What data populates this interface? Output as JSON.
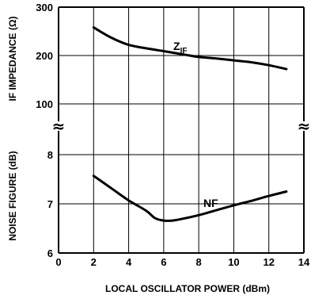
{
  "chart_data": {
    "type": "line",
    "xlabel": "LOCAL OSCILLATOR POWER (dBm)",
    "x_ticks": [
      "0",
      "2",
      "4",
      "6",
      "8",
      "10",
      "12",
      "14"
    ],
    "xlim": [
      0,
      14
    ],
    "grid": true,
    "panels": [
      {
        "ylabel": "IF IMPEDANCE (Ω)",
        "ylim": [
          100,
          300
        ],
        "y_ticks": [
          "100",
          "200",
          "300"
        ],
        "series": [
          {
            "name": "Z",
            "name_subscript": "IF",
            "x": [
              2,
              3,
              4,
              5,
              6,
              7,
              8,
              9,
              10,
              11,
              12,
              13
            ],
            "y": [
              258,
              237,
              222,
              215,
              209,
              203,
              197,
              194,
              190,
              186,
              180,
              172
            ]
          }
        ]
      },
      {
        "ylabel": "NOISE FIGURE (dB)",
        "ylim": [
          6,
          8
        ],
        "y_ticks": [
          "6",
          "7",
          "8"
        ],
        "series": [
          {
            "name": "NF",
            "x": [
              2,
              3,
              4,
              5,
              5.5,
              6,
              6.5,
              7,
              8,
              9,
              10,
              11,
              12,
              13
            ],
            "y": [
              7.57,
              7.32,
              7.07,
              6.86,
              6.71,
              6.66,
              6.66,
              6.69,
              6.77,
              6.87,
              6.97,
              7.06,
              7.16,
              7.25
            ]
          }
        ]
      }
    ],
    "axis_break_symbol": "≈"
  }
}
